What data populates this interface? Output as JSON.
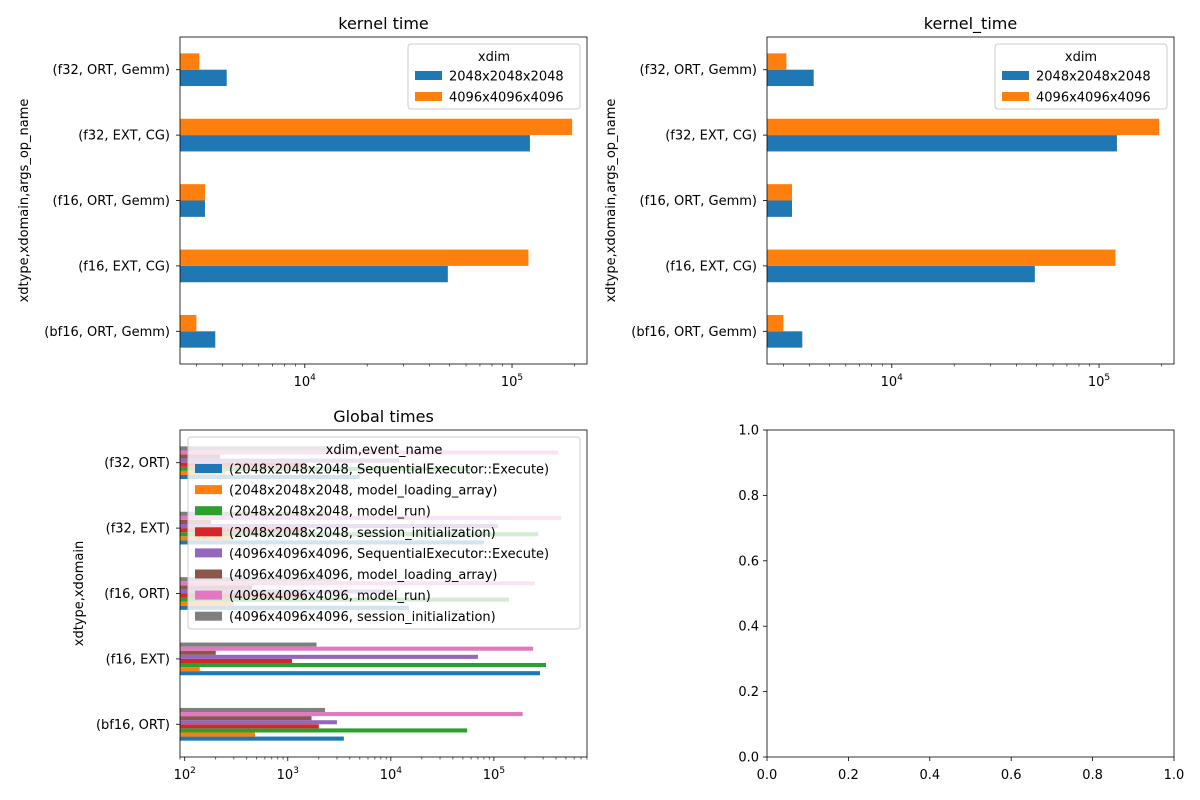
{
  "colors": {
    "c0": "#1f77b4",
    "c1": "#ff7f0e",
    "c2": "#2ca02c",
    "c3": "#d62728",
    "c4": "#9467bd",
    "c5": "#8c564b",
    "c6": "#e377c2",
    "c7": "#7f7f7f"
  },
  "chart_data": [
    {
      "type": "bar",
      "orientation": "horizontal",
      "title": "kernel time",
      "xlabel": "",
      "ylabel": "xdtype,xdomain,args_op_name",
      "xscale": "log",
      "xlim": [
        2500,
        230000
      ],
      "xticks": [
        {
          "value": 10000,
          "base": "10",
          "exp": "4"
        },
        {
          "value": 100000,
          "base": "10",
          "exp": "5"
        }
      ],
      "categories": [
        "(bf16, ORT, Gemm)",
        "(f16, EXT, CG)",
        "(f16, ORT, Gemm)",
        "(f32, EXT, CG)",
        "(f32, ORT, Gemm)"
      ],
      "legend": {
        "title": "xdim",
        "location": "upper right"
      },
      "series": [
        {
          "name": "2048x2048x2048",
          "color": "#1f77b4",
          "values": [
            3700,
            49000,
            3300,
            122000,
            4200
          ]
        },
        {
          "name": "4096x4096x4096",
          "color": "#ff7f0e",
          "values": [
            3000,
            120000,
            3300,
            195000,
            3100
          ]
        }
      ]
    },
    {
      "type": "bar",
      "orientation": "horizontal",
      "title": "kernel_time",
      "xlabel": "",
      "ylabel": "xdtype,xdomain,args_op_name",
      "xscale": "log",
      "xlim": [
        2500,
        230000
      ],
      "xticks": [
        {
          "value": 10000,
          "base": "10",
          "exp": "4"
        },
        {
          "value": 100000,
          "base": "10",
          "exp": "5"
        }
      ],
      "categories": [
        "(bf16, ORT, Gemm)",
        "(f16, EXT, CG)",
        "(f16, ORT, Gemm)",
        "(f32, EXT, CG)",
        "(f32, ORT, Gemm)"
      ],
      "legend": {
        "title": "xdim",
        "location": "upper right"
      },
      "series": [
        {
          "name": "2048x2048x2048",
          "color": "#1f77b4",
          "values": [
            3700,
            49000,
            3300,
            122000,
            4200
          ]
        },
        {
          "name": "4096x4096x4096",
          "color": "#ff7f0e",
          "values": [
            3000,
            120000,
            3300,
            195000,
            3100
          ]
        }
      ]
    },
    {
      "type": "bar",
      "orientation": "horizontal",
      "title": "Global times",
      "xlabel": "",
      "ylabel": "xdtype,xdomain",
      "xscale": "log",
      "xlim": [
        90,
        800000
      ],
      "xticks": [
        {
          "value": 100,
          "base": "10",
          "exp": "2"
        },
        {
          "value": 1000,
          "base": "10",
          "exp": "3"
        },
        {
          "value": 10000,
          "base": "10",
          "exp": "4"
        },
        {
          "value": 100000,
          "base": "10",
          "exp": "5"
        }
      ],
      "categories": [
        "(bf16, ORT)",
        "(f16, EXT)",
        "(f16, ORT)",
        "(f32, EXT)",
        "(f32, ORT)"
      ],
      "legend": {
        "title": "xdim,event_name",
        "location": "upper right"
      },
      "series": [
        {
          "name": "(2048x2048x2048, SequentialExecutor::Execute)",
          "color": "#1f77b4",
          "values": [
            3500,
            280000,
            15000,
            80000,
            5000
          ]
        },
        {
          "name": "(2048x2048x2048, model_loading_array)",
          "color": "#ff7f0e",
          "values": [
            480,
            140,
            300,
            300,
            250
          ]
        },
        {
          "name": "(2048x2048x2048, model_run)",
          "color": "#2ca02c",
          "values": [
            55000,
            320000,
            140000,
            270000,
            60000
          ]
        },
        {
          "name": "(2048x2048x2048, session_initialization)",
          "color": "#d62728",
          "values": [
            2000,
            1100,
            1500,
            1500,
            1500
          ]
        },
        {
          "name": "(4096x4096x4096, SequentialExecutor::Execute)",
          "color": "#9467bd",
          "values": [
            3000,
            70000,
            10000,
            110000,
            12000
          ]
        },
        {
          "name": "(4096x4096x4096, model_loading_array)",
          "color": "#8c564b",
          "values": [
            1700,
            200,
            450,
            180,
            220
          ]
        },
        {
          "name": "(4096x4096x4096, model_run)",
          "color": "#e377c2",
          "values": [
            190000,
            240000,
            250000,
            450000,
            420000
          ]
        },
        {
          "name": "(4096x4096x4096, session_initialization)",
          "color": "#7f7f7f",
          "values": [
            2300,
            1900,
            3000,
            2500,
            2500
          ]
        }
      ]
    },
    {
      "type": "empty",
      "title": "",
      "xlim": [
        0.0,
        1.0
      ],
      "ylim": [
        0.0,
        1.0
      ],
      "xticks": [
        "0.0",
        "0.2",
        "0.4",
        "0.6",
        "0.8",
        "1.0"
      ],
      "yticks": [
        "0.0",
        "0.2",
        "0.4",
        "0.6",
        "0.8",
        "1.0"
      ]
    }
  ]
}
